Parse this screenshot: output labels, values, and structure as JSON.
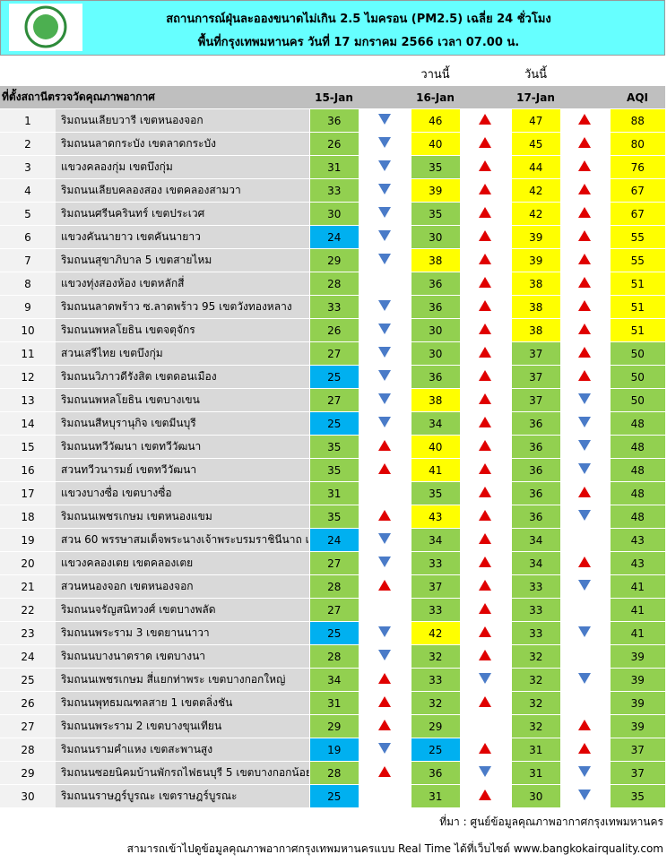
{
  "header": {
    "title": "สถานการณ์ฝุ่นละอองขนาดไม่เกิน 2.5 ไมครอน (PM2.5) เฉลี่ย 24 ชั่วโมง",
    "subtitle": "พื้นที่กรุงเทพมหานคร วันที่ 17 มกราคม 2566 เวลา 07.00 น."
  },
  "table": {
    "day_labels": [
      "วานนี้",
      "วันนี้"
    ],
    "columns": [
      "ที่ตั้งสถานีตรวจวัดคุณภาพอากาศ",
      "15-Jan",
      "16-Jan",
      "17-Jan",
      "AQI"
    ],
    "palette": {
      "g": "#92d050",
      "y": "#ffff00",
      "b": "#00b0f0",
      "up": "#e00000",
      "down": "#4a7bc8"
    },
    "rows": [
      {
        "no": 1,
        "name": "ริมถนนเลียบวารี เขตหนองจอก",
        "values": [
          36,
          46,
          47,
          88
        ],
        "colors": [
          "g",
          "y",
          "y",
          "y"
        ],
        "arrows": [
          "down",
          "up",
          "up"
        ]
      },
      {
        "no": 2,
        "name": "ริมถนนลาดกระบัง เขตลาดกระบัง",
        "values": [
          26,
          40,
          45,
          80
        ],
        "colors": [
          "g",
          "y",
          "y",
          "y"
        ],
        "arrows": [
          "down",
          "up",
          "up"
        ]
      },
      {
        "no": 3,
        "name": "แขวงคลองกุ่ม เขตบึงกุ่ม",
        "values": [
          31,
          35,
          44,
          76
        ],
        "colors": [
          "g",
          "g",
          "y",
          "y"
        ],
        "arrows": [
          "down",
          "up",
          "up"
        ]
      },
      {
        "no": 4,
        "name": "ริมถนนเลียบคลองสอง เขตคลองสามวา",
        "values": [
          33,
          39,
          42,
          67
        ],
        "colors": [
          "g",
          "y",
          "y",
          "y"
        ],
        "arrows": [
          "down",
          "up",
          "up"
        ]
      },
      {
        "no": 5,
        "name": "ริมถนนศรีนครินทร์ เขตประเวศ",
        "values": [
          30,
          35,
          42,
          67
        ],
        "colors": [
          "g",
          "g",
          "y",
          "y"
        ],
        "arrows": [
          "down",
          "up",
          "up"
        ]
      },
      {
        "no": 6,
        "name": "แขวงคันนายาว เขตคันนายาว",
        "values": [
          24,
          30,
          39,
          55
        ],
        "colors": [
          "b",
          "g",
          "y",
          "y"
        ],
        "arrows": [
          "down",
          "up",
          "up"
        ]
      },
      {
        "no": 7,
        "name": "ริมถนนสุขาภิบาล 5 เขตสายไหม",
        "values": [
          29,
          38,
          39,
          55
        ],
        "colors": [
          "g",
          "y",
          "y",
          "y"
        ],
        "arrows": [
          "down",
          "up",
          "up"
        ]
      },
      {
        "no": 8,
        "name": "แขวงทุ่งสองห้อง เขตหลักสี่",
        "values": [
          28,
          36,
          38,
          51
        ],
        "colors": [
          "g",
          "g",
          "y",
          "y"
        ],
        "arrows": [
          null,
          "up",
          "up"
        ]
      },
      {
        "no": 9,
        "name": "ริมถนนลาดพร้าว ซ.ลาดพร้าว 95 เขตวังทองหลาง",
        "values": [
          33,
          36,
          38,
          51
        ],
        "colors": [
          "g",
          "g",
          "y",
          "y"
        ],
        "arrows": [
          "down",
          "up",
          "up"
        ]
      },
      {
        "no": 10,
        "name": "ริมถนนพหลโยธิน เขตจตุจักร",
        "values": [
          26,
          30,
          38,
          51
        ],
        "colors": [
          "g",
          "g",
          "y",
          "y"
        ],
        "arrows": [
          "down",
          "up",
          "up"
        ]
      },
      {
        "no": 11,
        "name": "สวนเสรีไทย  เขตบึงกุ่ม",
        "values": [
          27,
          30,
          37,
          50
        ],
        "colors": [
          "g",
          "g",
          "g",
          "g"
        ],
        "arrows": [
          "down",
          "up",
          "up"
        ]
      },
      {
        "no": 12,
        "name": "ริมถนนวิภาวดีรังสิต เขตดอนเมือง",
        "values": [
          25,
          36,
          37,
          50
        ],
        "colors": [
          "b",
          "g",
          "g",
          "g"
        ],
        "arrows": [
          "down",
          "up",
          "up"
        ]
      },
      {
        "no": 13,
        "name": "ริมถนนพหลโยธิน เขตบางเขน",
        "values": [
          27,
          38,
          37,
          50
        ],
        "colors": [
          "g",
          "y",
          "g",
          "g"
        ],
        "arrows": [
          "down",
          "up",
          "down"
        ]
      },
      {
        "no": 14,
        "name": "ริมถนนสีหบุรานุกิจ เขตมีนบุรี",
        "values": [
          25,
          34,
          36,
          48
        ],
        "colors": [
          "b",
          "g",
          "g",
          "g"
        ],
        "arrows": [
          "down",
          "up",
          "down"
        ]
      },
      {
        "no": 15,
        "name": "ริมถนนทวีวัฒนา เขตทวีวัฒนา",
        "values": [
          35,
          40,
          36,
          48
        ],
        "colors": [
          "g",
          "y",
          "g",
          "g"
        ],
        "arrows": [
          "up",
          "up",
          "down"
        ]
      },
      {
        "no": 16,
        "name": "สวนทวีวนารมย์ เขตทวีวัฒนา",
        "values": [
          35,
          41,
          36,
          48
        ],
        "colors": [
          "g",
          "y",
          "g",
          "g"
        ],
        "arrows": [
          "up",
          "up",
          "down"
        ]
      },
      {
        "no": 17,
        "name": "แขวงบางซื่อ เขตบางซื่อ",
        "values": [
          31,
          35,
          36,
          48
        ],
        "colors": [
          "g",
          "g",
          "g",
          "g"
        ],
        "arrows": [
          null,
          "up",
          "up"
        ]
      },
      {
        "no": 18,
        "name": "ริมถนนเพชรเกษม เขตหนองแขม",
        "values": [
          35,
          43,
          36,
          48
        ],
        "colors": [
          "g",
          "y",
          "g",
          "g"
        ],
        "arrows": [
          "up",
          "up",
          "down"
        ]
      },
      {
        "no": 19,
        "name": "สวน 60 พรรษาสมเด็จพระนางเจ้าพระบรมราชินีนาถ เขต",
        "values": [
          24,
          34,
          34,
          43
        ],
        "colors": [
          "b",
          "g",
          "g",
          "g"
        ],
        "arrows": [
          "down",
          "up",
          null
        ]
      },
      {
        "no": 20,
        "name": "แขวงคลองเตย เขตคลองเตย",
        "values": [
          27,
          33,
          34,
          43
        ],
        "colors": [
          "g",
          "g",
          "g",
          "g"
        ],
        "arrows": [
          "down",
          "up",
          "up"
        ]
      },
      {
        "no": 21,
        "name": "สวนหนองจอก เขตหนองจอก",
        "values": [
          28,
          37,
          33,
          41
        ],
        "colors": [
          "g",
          "g",
          "g",
          "g"
        ],
        "arrows": [
          "up",
          "up",
          "down"
        ]
      },
      {
        "no": 22,
        "name": "ริมถนนจรัญสนิทวงศ์ เขตบางพลัด",
        "values": [
          27,
          33,
          33,
          41
        ],
        "colors": [
          "g",
          "g",
          "g",
          "g"
        ],
        "arrows": [
          null,
          "up",
          null
        ]
      },
      {
        "no": 23,
        "name": "ริมถนนพระราม 3 เขตยานนาวา",
        "values": [
          25,
          42,
          33,
          41
        ],
        "colors": [
          "b",
          "y",
          "g",
          "g"
        ],
        "arrows": [
          "down",
          "up",
          "down"
        ]
      },
      {
        "no": 24,
        "name": "ริมถนนบางนาตราด เขตบางนา",
        "values": [
          28,
          32,
          32,
          39
        ],
        "colors": [
          "g",
          "g",
          "g",
          "g"
        ],
        "arrows": [
          "down",
          "up",
          null
        ]
      },
      {
        "no": 25,
        "name": "ริมถนนเพชรเกษม สี่แยกท่าพระ เขตบางกอกใหญ่",
        "values": [
          34,
          33,
          32,
          39
        ],
        "colors": [
          "g",
          "g",
          "g",
          "g"
        ],
        "arrows": [
          "up",
          "down",
          "down"
        ]
      },
      {
        "no": 26,
        "name": "ริมถนนพุทธมณฑลสาย 1 เขตตลิ่งชัน",
        "values": [
          31,
          32,
          32,
          39
        ],
        "colors": [
          "g",
          "g",
          "g",
          "g"
        ],
        "arrows": [
          "up",
          "up",
          null
        ]
      },
      {
        "no": 27,
        "name": "ริมถนนพระราม 2 เขตบางขุนเทียน",
        "values": [
          29,
          29,
          32,
          39
        ],
        "colors": [
          "g",
          "g",
          "g",
          "g"
        ],
        "arrows": [
          "up",
          null,
          "up"
        ]
      },
      {
        "no": 28,
        "name": "ริมถนนรามคำแหง เขตสะพานสูง",
        "values": [
          19,
          25,
          31,
          37
        ],
        "colors": [
          "b",
          "b",
          "g",
          "g"
        ],
        "arrows": [
          "down",
          "up",
          "up"
        ]
      },
      {
        "no": 29,
        "name": "ริมถนนซอยนิคมบ้านพักรถไฟธนบุรี 5 เขตบางกอกน้อย",
        "values": [
          28,
          36,
          31,
          37
        ],
        "colors": [
          "g",
          "g",
          "g",
          "g"
        ],
        "arrows": [
          "up",
          "down",
          "down"
        ]
      },
      {
        "no": 30,
        "name": "ริมถนนราษฎร์บูรณะ เขตราษฎร์บูรณะ",
        "values": [
          25,
          31,
          30,
          35
        ],
        "colors": [
          "b",
          "g",
          "g",
          "g"
        ],
        "arrows": [
          null,
          "up",
          "down"
        ]
      }
    ]
  },
  "footer": {
    "source": "ที่มา : ศูนย์ข้อมูลคุณภาพอากาศกรุงเทพมหานคร",
    "note": "สามารถเข้าไปดูข้อมูลคุณภาพอากาศกรุงเทพมหานครแบบ Real Time ได้ที่เว็บไซต์ www.bangkokairquality.com"
  }
}
